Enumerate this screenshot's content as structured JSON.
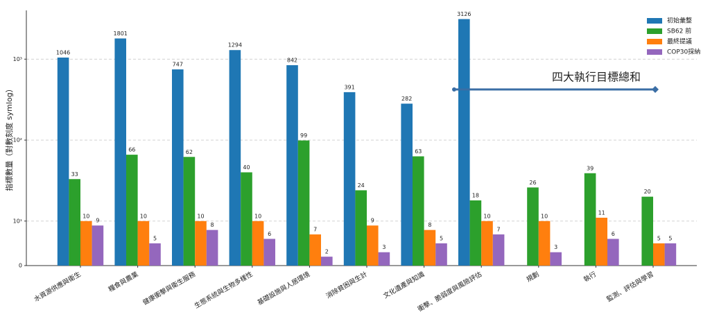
{
  "chart_data": {
    "type": "bar",
    "y_label": "指標數量（對數刻度 symlog）",
    "yscale": "symlog",
    "categories": [
      "水資源供應與衛生",
      "糧食與農業",
      "健康衝擊與衛生服務",
      "生態系統與生物多樣性",
      "基礎設施與人居環境",
      "消除貧困與生計",
      "文化遺產與知識",
      "衝擊、脆弱度與風險評估",
      "規劃",
      "執行",
      "監測、評估與學習"
    ],
    "series": [
      {
        "name": "初始彙整",
        "color": "#1f77b4",
        "values": [
          1046,
          1801,
          747,
          1294,
          842,
          391,
          282,
          3126,
          null,
          null,
          null
        ]
      },
      {
        "name": "SB62 前",
        "color": "#2ca02c",
        "values": [
          33,
          66,
          62,
          40,
          99,
          24,
          63,
          18,
          26,
          39,
          20
        ]
      },
      {
        "name": "最終提議",
        "color": "#ff7f0e",
        "values": [
          10,
          10,
          10,
          10,
          7,
          9,
          8,
          10,
          10,
          11,
          5
        ]
      },
      {
        "name": "COP30採納",
        "color": "#9467bd",
        "values": [
          9,
          5,
          8,
          6,
          2,
          3,
          5,
          7,
          3,
          6,
          5
        ]
      }
    ],
    "ylim": [
      0,
      4000
    ],
    "yticks": [
      0,
      {
        "value": 10,
        "label": "10¹"
      },
      {
        "value": 100,
        "label": "10²"
      },
      {
        "value": 1000,
        "label": "10³"
      }
    ],
    "grid": true,
    "legend": "upper right",
    "annotation": "四大執行目標總和"
  }
}
